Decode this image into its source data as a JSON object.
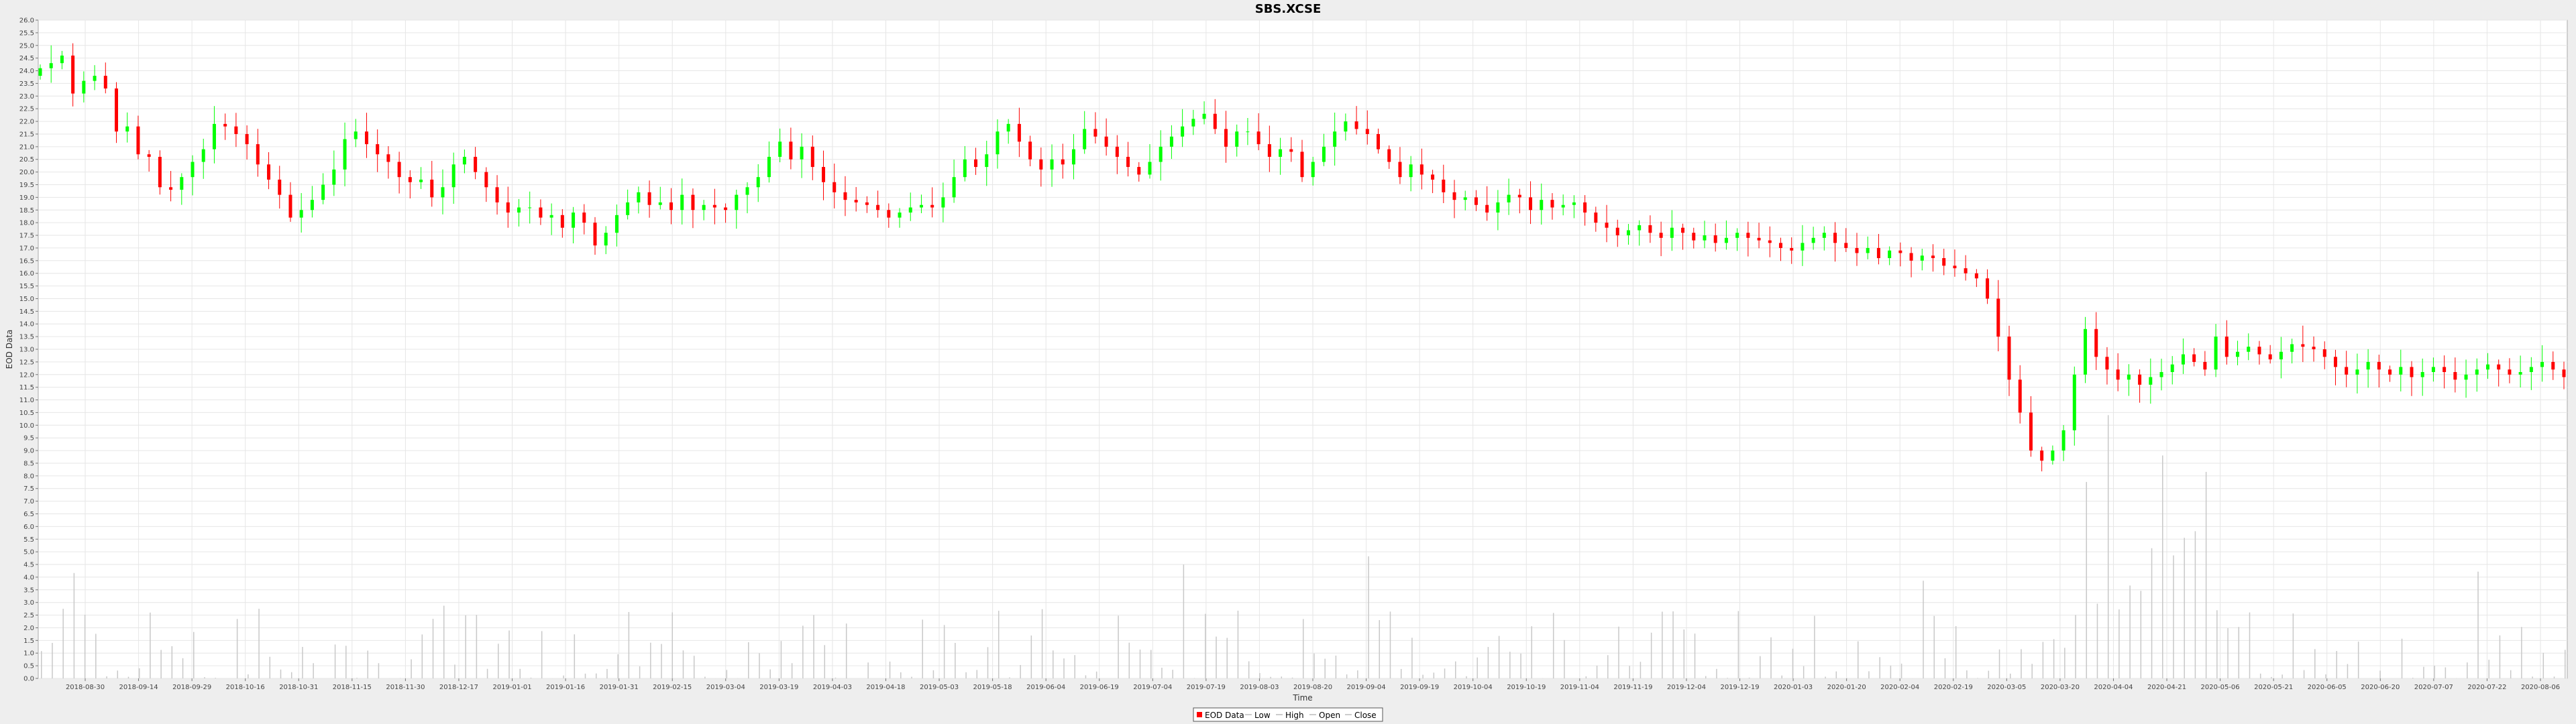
{
  "chart_data": {
    "type": "candlestick",
    "title": "SBS.XCSE",
    "xlabel": "Time",
    "ylabel": "EOD Data",
    "ylim": [
      0.0,
      26.0
    ],
    "y_ticks": [
      "0.0",
      "0.5",
      "1.0",
      "1.5",
      "2.0",
      "2.5",
      "3.0",
      "3.5",
      "4.0",
      "4.5",
      "5.0",
      "5.5",
      "6.0",
      "6.5",
      "7.0",
      "7.5",
      "8.0",
      "8.5",
      "9.0",
      "9.5",
      "10.0",
      "10.5",
      "11.0",
      "11.5",
      "12.0",
      "12.5",
      "13.0",
      "13.5",
      "14.0",
      "14.5",
      "15.0",
      "15.5",
      "16.0",
      "16.5",
      "17.0",
      "17.5",
      "18.0",
      "18.5",
      "19.0",
      "19.5",
      "20.0",
      "20.5",
      "21.0",
      "21.5",
      "22.0",
      "22.5",
      "23.0",
      "23.5",
      "24.0",
      "24.5",
      "25.0",
      "25.5",
      "26.0"
    ],
    "x_ticks": [
      "2018-08-30",
      "2018-09-14",
      "2018-09-29",
      "2018-10-16",
      "2018-10-31",
      "2018-11-15",
      "2018-11-30",
      "2018-12-17",
      "2019-01-01",
      "2019-01-16",
      "2019-01-31",
      "2019-02-15",
      "2019-03-04",
      "2019-03-19",
      "2019-04-03",
      "2019-04-18",
      "2019-05-03",
      "2019-05-18",
      "2019-06-04",
      "2019-06-19",
      "2019-07-04",
      "2019-07-19",
      "2019-08-03",
      "2019-08-20",
      "2019-09-04",
      "2019-09-19",
      "2019-10-04",
      "2019-10-19",
      "2019-11-04",
      "2019-11-19",
      "2019-12-04",
      "2019-12-19",
      "2020-01-03",
      "2020-01-20",
      "2020-02-04",
      "2020-02-19",
      "2020-03-05",
      "2020-03-20",
      "2020-04-04",
      "2020-04-21",
      "2020-05-06",
      "2020-05-21",
      "2020-06-05",
      "2020-06-20",
      "2020-07-07",
      "2020-07-22",
      "2020-08-06"
    ],
    "legend": [
      "EOD Data",
      "Low",
      "High",
      "Open",
      "Close"
    ],
    "legend_position": "bottom-center",
    "grid": true,
    "colors": {
      "up": "#00ff00",
      "down": "#ff0000",
      "volume": "#c8c8c8",
      "plot_bg": "#ffffff",
      "grid": "#e6e6e6"
    },
    "series": [
      {
        "name": "Close",
        "values": [
          24.1,
          24.3,
          24.6,
          23.1,
          23.6,
          23.8,
          23.3,
          21.6,
          21.8,
          20.7,
          20.6,
          19.4,
          19.3,
          19.8,
          20.4,
          20.9,
          21.9,
          21.8,
          21.5,
          21.1,
          20.3,
          19.7,
          19.1,
          18.2,
          18.5,
          18.9,
          19.5,
          20.1,
          21.3,
          21.6,
          21.1,
          20.7,
          20.4,
          19.8,
          19.6,
          19.7,
          19.0,
          19.4,
          20.3,
          20.6,
          20.0,
          19.4,
          18.8,
          18.4,
          18.6,
          18.6,
          18.2,
          18.3,
          17.8,
          18.4,
          18.0,
          17.1,
          17.6,
          18.3,
          18.8,
          19.2,
          18.7,
          18.8,
          18.5,
          19.1,
          18.5,
          18.7,
          18.6,
          18.5,
          19.1,
          19.4,
          19.8,
          20.6,
          21.2,
          20.5,
          21.0,
          20.2,
          19.6,
          19.2,
          18.9,
          18.8,
          18.7,
          18.5,
          18.2,
          18.4,
          18.6,
          18.7,
          18.6,
          19.0,
          19.8,
          20.5,
          20.2,
          20.7,
          21.6,
          21.9,
          21.2,
          20.5,
          20.1,
          20.5,
          20.3,
          20.9,
          21.7,
          21.4,
          21.0,
          20.6,
          20.2,
          19.9,
          20.4,
          21.0,
          21.4,
          21.8,
          22.1,
          22.3,
          21.7,
          21.0,
          21.6,
          21.6,
          21.1,
          20.6,
          20.9,
          20.8,
          19.8,
          20.4,
          21.0,
          21.6,
          22.0,
          21.7,
          21.5,
          20.9,
          20.4,
          19.8,
          20.3,
          19.9,
          19.7,
          19.2,
          18.9,
          19.0,
          18.7,
          18.4,
          18.8,
          19.1,
          19.0,
          18.5,
          18.9,
          18.6,
          18.7,
          18.8,
          18.4,
          18.0,
          17.8,
          17.5,
          17.7,
          17.9,
          17.6,
          17.4,
          17.8,
          17.6,
          17.3,
          17.5,
          17.2,
          17.4,
          17.6,
          17.4,
          17.3,
          17.2,
          17.0,
          16.9,
          17.2,
          17.4,
          17.6,
          17.2,
          17.0,
          16.8,
          17.0,
          16.6,
          16.9,
          16.8,
          16.5,
          16.7,
          16.6,
          16.3,
          16.2,
          16.0,
          15.8,
          15.0,
          13.5,
          11.8,
          10.5,
          9.0,
          8.6,
          9.0,
          9.8,
          12.0,
          13.8,
          12.7,
          12.2,
          11.8,
          12.0,
          11.6,
          11.9,
          12.1,
          12.4,
          12.8,
          12.5,
          12.2,
          13.5,
          12.7,
          12.9,
          13.1,
          12.8,
          12.6,
          12.9,
          13.2,
          13.1,
          13.0,
          12.7,
          12.3,
          12.0,
          12.2,
          12.5,
          12.2,
          12.0,
          12.3,
          11.9,
          12.1,
          12.3,
          12.1,
          11.8,
          12.0,
          12.2,
          12.4,
          12.2,
          12.0,
          12.1,
          12.3,
          12.5,
          12.2,
          11.9
        ]
      }
    ]
  },
  "legend_labels": {
    "eod": "EOD Data",
    "low": "Low",
    "high": "High",
    "open": "Open",
    "close": "Close"
  }
}
